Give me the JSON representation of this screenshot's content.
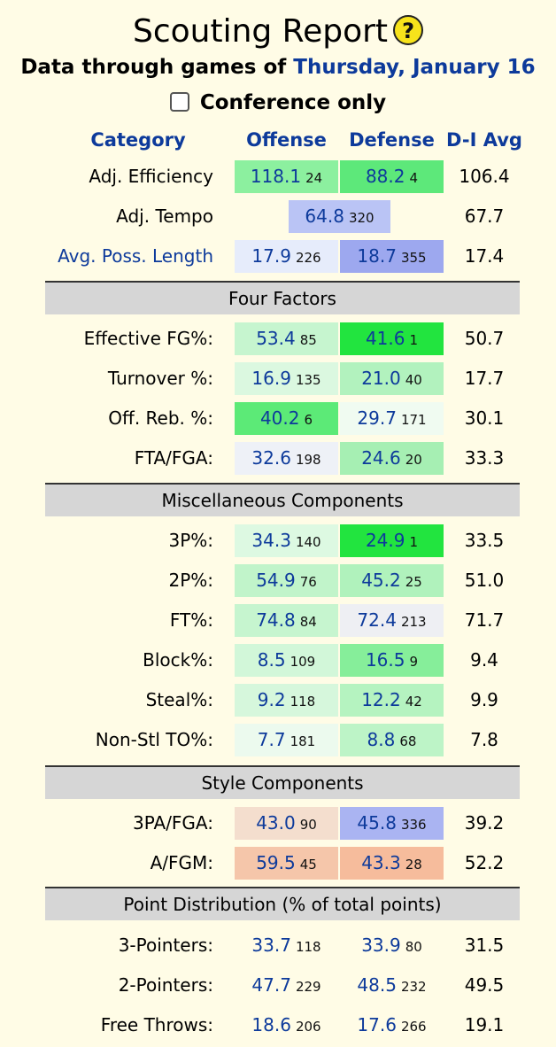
{
  "header": {
    "title": "Scouting Report",
    "help_glyph": "?",
    "through_prefix": "Data through games of",
    "through_date": "Thursday, January 16",
    "conference_label": "Conference only"
  },
  "columns": {
    "category": "Category",
    "offense": "Offense",
    "defense": "Defense",
    "avg": "D-I Avg"
  },
  "summary": [
    {
      "label": "Adj. Efficiency",
      "link": false,
      "off": "118.1",
      "off_rank": "24",
      "off_color": "#8cf09f",
      "def": "88.2",
      "def_rank": "4",
      "def_color": "#5de87a",
      "avg": "106.4"
    },
    {
      "label": "Adj. Tempo",
      "link": false,
      "single": true,
      "val": "64.8",
      "val_rank": "320",
      "val_color": "#bac4f5",
      "avg": "67.7"
    },
    {
      "label": "Avg. Poss. Length",
      "link": true,
      "off": "17.9",
      "off_rank": "226",
      "off_color": "#e6ecfb",
      "def": "18.7",
      "def_rank": "355",
      "def_color": "#9da8ef",
      "avg": "17.4"
    }
  ],
  "sections": [
    {
      "title": "Four Factors",
      "rows": [
        {
          "label": "Effective FG%:",
          "off": "53.4",
          "off_rank": "85",
          "off_color": "#c6f5cf",
          "def": "41.6",
          "def_rank": "1",
          "def_color": "#22e43f",
          "avg": "50.7"
        },
        {
          "label": "Turnover %:",
          "off": "16.9",
          "off_rank": "135",
          "off_color": "#dbf8e0",
          "def": "21.0",
          "def_rank": "40",
          "def_color": "#b2f2be",
          "avg": "17.7"
        },
        {
          "label": "Off. Reb. %:",
          "off": "40.2",
          "off_rank": "6",
          "off_color": "#5cea77",
          "def": "29.7",
          "def_rank": "171",
          "def_color": "#f0fbf1",
          "avg": "30.1"
        },
        {
          "label": "FTA/FGA:",
          "off": "32.6",
          "off_rank": "198",
          "off_color": "#eef1f7",
          "def": "24.6",
          "def_rank": "20",
          "def_color": "#a6efb3",
          "avg": "33.3"
        }
      ]
    },
    {
      "title": "Miscellaneous Components",
      "rows": [
        {
          "label": "3P%:",
          "off": "34.3",
          "off_rank": "140",
          "off_color": "#ddf9e2",
          "def": "24.9",
          "def_rank": "1",
          "def_color": "#22e43f",
          "avg": "33.5"
        },
        {
          "label": "2P%:",
          "off": "54.9",
          "off_rank": "76",
          "off_color": "#c1f4ca",
          "def": "45.2",
          "def_rank": "25",
          "def_color": "#b0f2bc",
          "avg": "51.0"
        },
        {
          "label": "FT%:",
          "off": "74.8",
          "off_rank": "84",
          "off_color": "#c6f5cf",
          "def": "72.4",
          "def_rank": "213",
          "def_color": "#eeeff3",
          "avg": "71.7"
        },
        {
          "label": "Block%:",
          "off": "8.5",
          "off_rank": "109",
          "off_color": "#d2f7d9",
          "def": "16.5",
          "def_rank": "9",
          "def_color": "#86ee9a",
          "avg": "9.4"
        },
        {
          "label": "Steal%:",
          "off": "9.2",
          "off_rank": "118",
          "off_color": "#d6f7dc",
          "def": "12.2",
          "def_rank": "42",
          "def_color": "#b5f3c0",
          "avg": "9.9"
        },
        {
          "label": "Non-Stl TO%:",
          "off": "7.7",
          "off_rank": "181",
          "off_color": "#ecfaee",
          "def": "8.8",
          "def_rank": "68",
          "def_color": "#bdf4c7",
          "avg": "7.8"
        }
      ]
    },
    {
      "title": "Style Components",
      "rows": [
        {
          "label": "3PA/FGA:",
          "off": "43.0",
          "off_rank": "90",
          "off_color": "#f4dece",
          "def": "45.8",
          "def_rank": "336",
          "def_color": "#aab4f2",
          "avg": "39.2"
        },
        {
          "label": "A/FGM:",
          "off": "59.5",
          "off_rank": "45",
          "off_color": "#f5c6aa",
          "def": "43.3",
          "def_rank": "28",
          "def_color": "#f6bc9c",
          "avg": "52.2"
        }
      ]
    },
    {
      "title": "Point Distribution (% of total points)",
      "rows": [
        {
          "label": "3-Pointers:",
          "off": "33.7",
          "off_rank": "118",
          "off_color": "",
          "def": "33.9",
          "def_rank": "80",
          "def_color": "",
          "avg": "31.5"
        },
        {
          "label": "2-Pointers:",
          "off": "47.7",
          "off_rank": "229",
          "off_color": "",
          "def": "48.5",
          "def_rank": "232",
          "def_color": "",
          "avg": "49.5"
        },
        {
          "label": "Free Throws:",
          "off": "18.6",
          "off_rank": "206",
          "off_color": "",
          "def": "17.6",
          "def_rank": "266",
          "def_color": "",
          "avg": "19.1"
        }
      ]
    }
  ]
}
